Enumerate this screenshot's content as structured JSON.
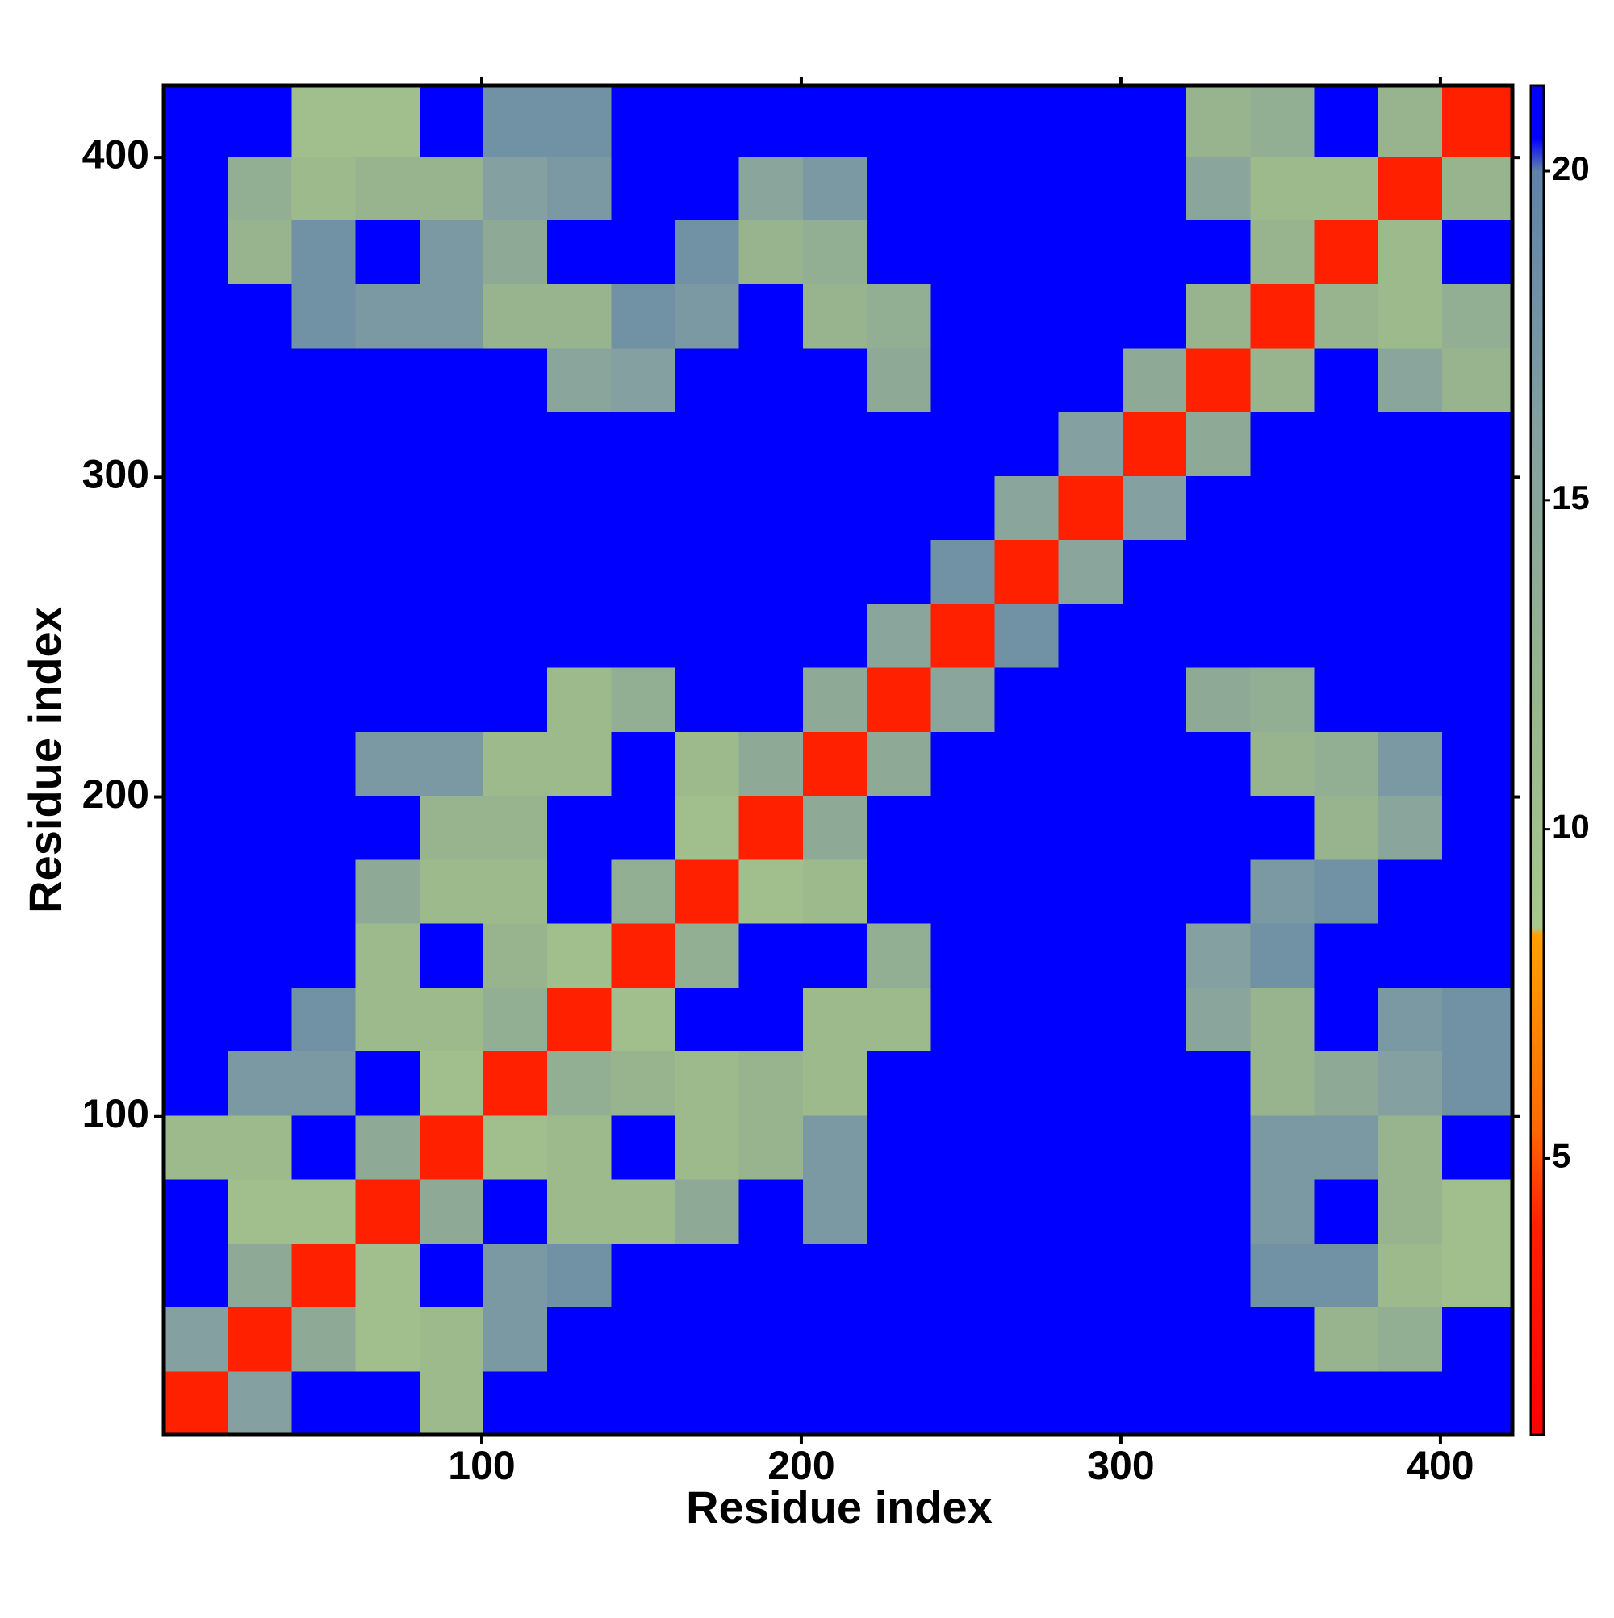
{
  "chart_data": {
    "type": "heatmap",
    "x_title": "Residue index",
    "y_title": "Residue index",
    "x_edges": [
      0.5,
      20.5,
      40.5,
      60.5,
      80.5,
      100.5,
      120.5,
      140.5,
      160.5,
      180.5,
      200.5,
      220.5,
      240.5,
      260.5,
      280.5,
      300.5,
      320.5,
      340.5,
      360.5,
      380.5,
      400.5,
      422.5
    ],
    "y_edges": [
      0.5,
      20.5,
      40.5,
      60.5,
      80.5,
      100.5,
      120.5,
      140.5,
      160.5,
      180.5,
      200.5,
      220.5,
      240.5,
      260.5,
      280.5,
      300.5,
      320.5,
      340.5,
      360.5,
      380.5,
      400.5,
      422.5
    ],
    "z": [
      [
        4,
        16,
        21,
        21,
        11,
        21,
        21,
        21,
        21,
        21,
        21,
        21,
        21,
        21,
        21,
        21,
        21,
        21,
        21,
        21,
        21
      ],
      [
        16,
        4,
        14,
        10,
        11,
        17,
        21,
        21,
        21,
        21,
        21,
        21,
        21,
        21,
        21,
        21,
        21,
        21,
        12,
        13,
        21
      ],
      [
        21,
        14,
        4,
        10,
        21,
        17,
        18,
        21,
        21,
        21,
        21,
        21,
        21,
        21,
        21,
        21,
        21,
        18,
        18,
        11,
        10
      ],
      [
        21,
        10,
        10,
        4,
        14,
        21,
        11,
        11,
        14,
        21,
        17,
        21,
        21,
        21,
        21,
        21,
        21,
        17,
        21,
        12,
        10
      ],
      [
        11,
        11,
        21,
        14,
        4,
        10,
        11,
        21,
        11,
        12,
        17,
        21,
        21,
        21,
        21,
        21,
        21,
        17,
        17,
        12,
        21
      ],
      [
        21,
        17,
        17,
        21,
        10,
        4,
        13,
        12,
        11,
        12,
        11,
        21,
        21,
        21,
        21,
        21,
        21,
        12,
        14,
        16,
        18
      ],
      [
        21,
        21,
        18,
        11,
        11,
        13,
        4,
        10,
        21,
        21,
        11,
        11,
        21,
        21,
        21,
        21,
        15,
        12,
        21,
        17,
        18
      ],
      [
        21,
        21,
        21,
        11,
        21,
        12,
        10,
        4,
        13,
        21,
        21,
        13,
        21,
        21,
        21,
        21,
        16,
        18,
        21,
        21,
        21
      ],
      [
        21,
        21,
        21,
        14,
        11,
        11,
        21,
        13,
        4,
        10,
        11,
        21,
        21,
        21,
        21,
        21,
        21,
        17,
        18,
        21,
        21
      ],
      [
        21,
        21,
        21,
        21,
        12,
        12,
        21,
        21,
        10,
        4,
        14,
        21,
        21,
        21,
        21,
        21,
        21,
        21,
        12,
        15,
        21
      ],
      [
        21,
        21,
        21,
        17,
        17,
        11,
        11,
        21,
        11,
        14,
        4,
        14,
        21,
        21,
        21,
        21,
        21,
        12,
        13,
        17,
        21
      ],
      [
        21,
        21,
        21,
        21,
        21,
        21,
        11,
        13,
        21,
        21,
        14,
        4,
        15,
        21,
        21,
        21,
        14,
        13,
        21,
        21,
        21
      ],
      [
        21,
        21,
        21,
        21,
        21,
        21,
        21,
        21,
        21,
        21,
        21,
        15,
        4,
        18,
        21,
        21,
        21,
        21,
        21,
        21,
        21
      ],
      [
        21,
        21,
        21,
        21,
        21,
        21,
        21,
        21,
        21,
        21,
        21,
        21,
        18,
        4,
        15,
        21,
        21,
        21,
        21,
        21,
        21
      ],
      [
        21,
        21,
        21,
        21,
        21,
        21,
        21,
        21,
        21,
        21,
        21,
        21,
        21,
        15,
        4,
        16,
        21,
        21,
        21,
        21,
        21
      ],
      [
        21,
        21,
        21,
        21,
        21,
        21,
        21,
        21,
        21,
        21,
        21,
        21,
        21,
        21,
        16,
        4,
        14,
        21,
        21,
        21,
        21
      ],
      [
        21,
        21,
        21,
        21,
        21,
        21,
        15,
        16,
        21,
        21,
        21,
        14,
        21,
        21,
        21,
        14,
        4,
        12,
        21,
        15,
        12
      ],
      [
        21,
        21,
        18,
        17,
        17,
        12,
        12,
        18,
        17,
        21,
        12,
        13,
        21,
        21,
        21,
        21,
        12,
        4,
        12,
        11,
        13
      ],
      [
        21,
        12,
        18,
        21,
        17,
        14,
        21,
        21,
        18,
        12,
        13,
        21,
        21,
        21,
        21,
        21,
        21,
        12,
        4,
        11,
        21
      ],
      [
        21,
        13,
        11,
        12,
        12,
        16,
        17,
        21,
        21,
        15,
        17,
        21,
        21,
        21,
        21,
        21,
        15,
        11,
        11,
        4,
        12
      ],
      [
        21,
        21,
        10,
        10,
        21,
        18,
        18,
        21,
        21,
        21,
        21,
        21,
        21,
        21,
        21,
        21,
        12,
        13,
        21,
        12,
        4
      ]
    ],
    "xlim": [
      0.5,
      422.5
    ],
    "ylim": [
      0.5,
      422.5
    ],
    "xticks": [
      100,
      200,
      300,
      400
    ],
    "yticks": [
      100,
      200,
      300,
      400
    ],
    "colorbar": {
      "lim": [
        0.8,
        21.3
      ],
      "ticks": [
        5,
        10,
        15,
        20
      ],
      "colorscale": [
        [
          0.8,
          "#ff0000"
        ],
        [
          4,
          "#ff2000"
        ],
        [
          5.5,
          "#ff6a00"
        ],
        [
          8.4,
          "#ffa000"
        ],
        [
          8.5,
          "#a8c88c"
        ],
        [
          12,
          "#98b48e"
        ],
        [
          16,
          "#84a0a0"
        ],
        [
          20,
          "#5e82a8"
        ],
        [
          20.5,
          "#0000ff"
        ],
        [
          21.3,
          "#0000ff"
        ]
      ]
    }
  }
}
